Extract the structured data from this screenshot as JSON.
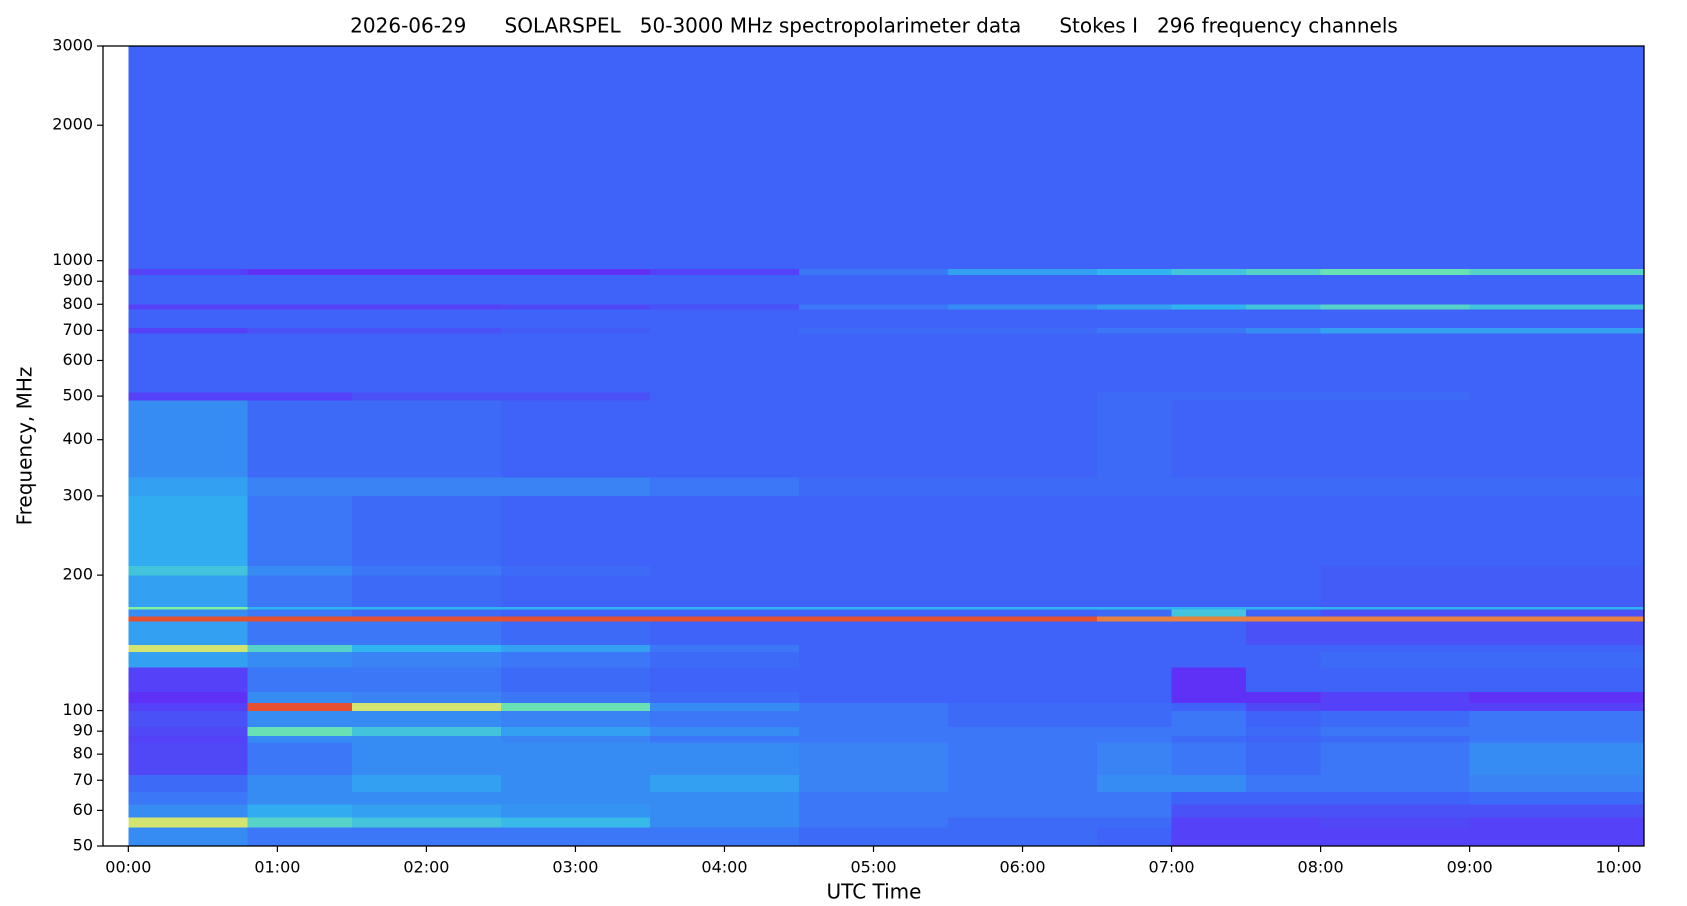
{
  "chart_data": {
    "type": "heatmap",
    "title": "2026-06-29      SOLARSPEL   50-3000 MHz spectropolarimeter data      Stokes I   296 frequency channels",
    "x_label": "UTC Time",
    "y_label": "Frequency, MHz",
    "xlim": [
      -0.17,
      10.17
    ],
    "xticks": [
      {
        "value": 0,
        "label": "00:00"
      },
      {
        "value": 1,
        "label": "01:00"
      },
      {
        "value": 2,
        "label": "02:00"
      },
      {
        "value": 3,
        "label": "03:00"
      },
      {
        "value": 4,
        "label": "04:00"
      },
      {
        "value": 5,
        "label": "05:00"
      },
      {
        "value": 6,
        "label": "06:00"
      },
      {
        "value": 7,
        "label": "07:00"
      },
      {
        "value": 8,
        "label": "08:00"
      },
      {
        "value": 9,
        "label": "09:00"
      },
      {
        "value": 10,
        "label": "10:00"
      }
    ],
    "ylim": [
      50,
      3000
    ],
    "ylog": true,
    "yticks": [
      50,
      60,
      70,
      80,
      90,
      100,
      200,
      300,
      400,
      500,
      600,
      700,
      800,
      900,
      1000,
      2000,
      3000
    ],
    "colormap": [
      "#6a1ff5",
      "#3f63f8",
      "#2fb4f0",
      "#7ef0a0",
      "#f0e060",
      "#e02020"
    ],
    "xbins": [
      0,
      0.8,
      1.5,
      2.5,
      3.5,
      4.5,
      5.5,
      6.5,
      7.0,
      7.5,
      8.0,
      9.0,
      10.17
    ],
    "ybins": [
      50,
      55,
      58,
      62,
      66,
      72,
      85,
      88,
      92,
      100,
      104,
      110,
      125,
      135,
      140,
      158,
      162,
      168,
      170,
      200,
      210,
      300,
      330,
      490,
      510,
      690,
      710,
      780,
      800,
      930,
      960,
      3000
    ],
    "values": [
      [
        0.3,
        0.25,
        0.25,
        0.25,
        0.25,
        0.22,
        0.22,
        0.2,
        0.1,
        0.1,
        0.1,
        0.1
      ],
      [
        0.75,
        0.5,
        0.45,
        0.42,
        0.3,
        0.25,
        0.22,
        0.22,
        0.1,
        0.1,
        0.12,
        0.1
      ],
      [
        0.3,
        0.38,
        0.35,
        0.32,
        0.3,
        0.25,
        0.25,
        0.25,
        0.15,
        0.15,
        0.15,
        0.15
      ],
      [
        0.25,
        0.3,
        0.3,
        0.3,
        0.3,
        0.25,
        0.25,
        0.25,
        0.2,
        0.2,
        0.2,
        0.22
      ],
      [
        0.22,
        0.3,
        0.35,
        0.3,
        0.35,
        0.28,
        0.25,
        0.3,
        0.3,
        0.25,
        0.25,
        0.28
      ],
      [
        0.12,
        0.25,
        0.3,
        0.3,
        0.3,
        0.28,
        0.25,
        0.28,
        0.25,
        0.22,
        0.25,
        0.3
      ],
      [
        0.1,
        0.3,
        0.3,
        0.28,
        0.25,
        0.25,
        0.25,
        0.25,
        0.22,
        0.2,
        0.22,
        0.25
      ],
      [
        0.12,
        0.55,
        0.45,
        0.35,
        0.3,
        0.25,
        0.25,
        0.25,
        0.25,
        0.22,
        0.25,
        0.25
      ],
      [
        0.15,
        0.3,
        0.3,
        0.28,
        0.25,
        0.25,
        0.22,
        0.22,
        0.25,
        0.2,
        0.22,
        0.25
      ],
      [
        0.1,
        0.95,
        0.75,
        0.55,
        0.3,
        0.25,
        0.22,
        0.22,
        0.2,
        0.12,
        0.1,
        0.1
      ],
      [
        0.05,
        0.3,
        0.28,
        0.25,
        0.22,
        0.2,
        0.2,
        0.2,
        0.05,
        0.05,
        0.1,
        0.05
      ],
      [
        0.1,
        0.25,
        0.25,
        0.22,
        0.2,
        0.2,
        0.2,
        0.2,
        0.05,
        0.2,
        0.2,
        0.2
      ],
      [
        0.35,
        0.3,
        0.28,
        0.25,
        0.22,
        0.2,
        0.2,
        0.2,
        0.2,
        0.2,
        0.22,
        0.22
      ],
      [
        0.75,
        0.5,
        0.4,
        0.35,
        0.25,
        0.2,
        0.2,
        0.2,
        0.2,
        0.2,
        0.2,
        0.2
      ],
      [
        0.35,
        0.25,
        0.25,
        0.22,
        0.2,
        0.2,
        0.2,
        0.2,
        0.2,
        0.15,
        0.15,
        0.15
      ],
      [
        0.95,
        0.95,
        0.95,
        0.95,
        0.95,
        0.95,
        0.95,
        0.9,
        0.9,
        0.9,
        0.9,
        0.9
      ],
      [
        0.3,
        0.25,
        0.22,
        0.2,
        0.2,
        0.2,
        0.2,
        0.22,
        0.45,
        0.2,
        0.15,
        0.15
      ],
      [
        0.6,
        0.4,
        0.4,
        0.4,
        0.4,
        0.4,
        0.4,
        0.4,
        0.4,
        0.4,
        0.4,
        0.4
      ],
      [
        0.35,
        0.25,
        0.22,
        0.2,
        0.2,
        0.2,
        0.2,
        0.2,
        0.2,
        0.2,
        0.18,
        0.18
      ],
      [
        0.45,
        0.3,
        0.25,
        0.22,
        0.2,
        0.2,
        0.2,
        0.2,
        0.2,
        0.2,
        0.18,
        0.18
      ],
      [
        0.38,
        0.25,
        0.22,
        0.2,
        0.2,
        0.2,
        0.2,
        0.2,
        0.2,
        0.2,
        0.2,
        0.2
      ],
      [
        0.35,
        0.28,
        0.28,
        0.28,
        0.25,
        0.22,
        0.22,
        0.22,
        0.22,
        0.22,
        0.22,
        0.22
      ],
      [
        0.3,
        0.22,
        0.22,
        0.2,
        0.2,
        0.2,
        0.2,
        0.22,
        0.2,
        0.2,
        0.2,
        0.2
      ],
      [
        0.1,
        0.1,
        0.15,
        0.15,
        0.2,
        0.2,
        0.2,
        0.22,
        0.22,
        0.22,
        0.22,
        0.2
      ],
      [
        0.2,
        0.2,
        0.2,
        0.2,
        0.2,
        0.2,
        0.2,
        0.2,
        0.2,
        0.2,
        0.2,
        0.2
      ],
      [
        0.1,
        0.15,
        0.15,
        0.18,
        0.2,
        0.22,
        0.22,
        0.25,
        0.25,
        0.3,
        0.35,
        0.35
      ],
      [
        0.2,
        0.2,
        0.2,
        0.2,
        0.2,
        0.2,
        0.2,
        0.2,
        0.2,
        0.2,
        0.2,
        0.2
      ],
      [
        0.1,
        0.1,
        0.1,
        0.12,
        0.15,
        0.25,
        0.3,
        0.35,
        0.4,
        0.45,
        0.5,
        0.45
      ],
      [
        0.2,
        0.2,
        0.2,
        0.2,
        0.2,
        0.2,
        0.2,
        0.2,
        0.2,
        0.2,
        0.2,
        0.2
      ],
      [
        0.1,
        0.05,
        0.05,
        0.05,
        0.1,
        0.25,
        0.35,
        0.4,
        0.45,
        0.5,
        0.55,
        0.5
      ],
      [
        0.2,
        0.2,
        0.2,
        0.2,
        0.2,
        0.2,
        0.2,
        0.2,
        0.2,
        0.2,
        0.2,
        0.2
      ]
    ]
  }
}
